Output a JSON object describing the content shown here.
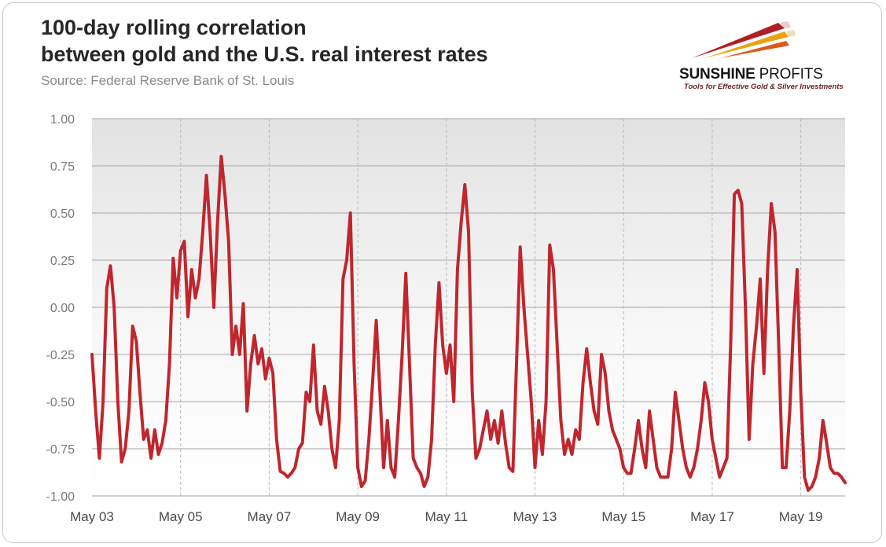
{
  "header": {
    "title_line1": "100-day rolling correlation",
    "title_line2": "between gold and the U.S. real interest rates",
    "source": "Source: Federal Reserve Bank of St. Louis"
  },
  "logo": {
    "brand_bold": "SUNSHINE",
    "brand_rest": " PROFITS",
    "tagline": "Tools for Effective Gold & Silver Investments",
    "colors": [
      "#b01e23",
      "#e8a317",
      "#d95a1a"
    ]
  },
  "chart_data": {
    "type": "line",
    "title": "100-day rolling correlation between gold and the U.S. real interest rates",
    "xlabel": "",
    "ylabel": "",
    "ylim": [
      -1.0,
      1.0
    ],
    "xlim": [
      "2003-05",
      "2020-05"
    ],
    "x_ticks": [
      "May 03",
      "May 05",
      "May 07",
      "May 09",
      "May 11",
      "May 13",
      "May 15",
      "May 17",
      "May 19"
    ],
    "y_ticks": [
      "1.00",
      "0.75",
      "0.50",
      "0.25",
      "0.00",
      "-0.25",
      "-0.50",
      "-0.75",
      "-1.00"
    ],
    "y_tick_values": [
      1.0,
      0.75,
      0.5,
      0.25,
      0.0,
      -0.25,
      -0.5,
      -0.75,
      -1.0
    ],
    "grid": "horizontal solid, vertical dashed at x ticks",
    "series": [
      {
        "color": "#c0262d",
        "points": [
          [
            "2003-05",
            -0.25
          ],
          [
            "2003-06",
            -0.55
          ],
          [
            "2003-07",
            -0.8
          ],
          [
            "2003-08",
            -0.5
          ],
          [
            "2003-09",
            0.1
          ],
          [
            "2003-10",
            0.22
          ],
          [
            "2003-11",
            0.0
          ],
          [
            "2003-12",
            -0.5
          ],
          [
            "2004-01",
            -0.82
          ],
          [
            "2004-02",
            -0.75
          ],
          [
            "2004-03",
            -0.55
          ],
          [
            "2004-04",
            -0.1
          ],
          [
            "2004-05",
            -0.18
          ],
          [
            "2004-06",
            -0.45
          ],
          [
            "2004-07",
            -0.7
          ],
          [
            "2004-08",
            -0.65
          ],
          [
            "2004-09",
            -0.8
          ],
          [
            "2004-10",
            -0.65
          ],
          [
            "2004-11",
            -0.78
          ],
          [
            "2004-12",
            -0.72
          ],
          [
            "2005-01",
            -0.6
          ],
          [
            "2005-02",
            -0.3
          ],
          [
            "2005-03",
            0.26
          ],
          [
            "2005-04",
            0.05
          ],
          [
            "2005-05",
            0.3
          ],
          [
            "2005-06",
            0.35
          ],
          [
            "2005-07",
            -0.05
          ],
          [
            "2005-08",
            0.2
          ],
          [
            "2005-09",
            0.05
          ],
          [
            "2005-10",
            0.15
          ],
          [
            "2005-11",
            0.4
          ],
          [
            "2005-12",
            0.7
          ],
          [
            "2006-01",
            0.4
          ],
          [
            "2006-02",
            0.0
          ],
          [
            "2006-03",
            0.45
          ],
          [
            "2006-04",
            0.8
          ],
          [
            "2006-05",
            0.6
          ],
          [
            "2006-06",
            0.35
          ],
          [
            "2006-07",
            -0.25
          ],
          [
            "2006-08",
            -0.1
          ],
          [
            "2006-09",
            -0.25
          ],
          [
            "2006-10",
            0.02
          ],
          [
            "2006-11",
            -0.55
          ],
          [
            "2006-12",
            -0.3
          ],
          [
            "2007-01",
            -0.15
          ],
          [
            "2007-02",
            -0.3
          ],
          [
            "2007-03",
            -0.22
          ],
          [
            "2007-04",
            -0.38
          ],
          [
            "2007-05",
            -0.27
          ],
          [
            "2007-06",
            -0.35
          ],
          [
            "2007-07",
            -0.7
          ],
          [
            "2007-08",
            -0.87
          ],
          [
            "2007-09",
            -0.88
          ],
          [
            "2007-10",
            -0.9
          ],
          [
            "2007-11",
            -0.88
          ],
          [
            "2007-12",
            -0.85
          ],
          [
            "2008-01",
            -0.75
          ],
          [
            "2008-02",
            -0.72
          ],
          [
            "2008-03",
            -0.45
          ],
          [
            "2008-04",
            -0.5
          ],
          [
            "2008-05",
            -0.2
          ],
          [
            "2008-06",
            -0.55
          ],
          [
            "2008-07",
            -0.62
          ],
          [
            "2008-08",
            -0.42
          ],
          [
            "2008-09",
            -0.55
          ],
          [
            "2008-10",
            -0.75
          ],
          [
            "2008-11",
            -0.85
          ],
          [
            "2008-12",
            -0.6
          ],
          [
            "2009-01",
            0.15
          ],
          [
            "2009-02",
            0.25
          ],
          [
            "2009-03",
            0.5
          ],
          [
            "2009-04",
            -0.3
          ],
          [
            "2009-05",
            -0.85
          ],
          [
            "2009-06",
            -0.95
          ],
          [
            "2009-07",
            -0.92
          ],
          [
            "2009-08",
            -0.7
          ],
          [
            "2009-09",
            -0.4
          ],
          [
            "2009-10",
            -0.07
          ],
          [
            "2009-11",
            -0.45
          ],
          [
            "2009-12",
            -0.85
          ],
          [
            "2010-01",
            -0.6
          ],
          [
            "2010-02",
            -0.85
          ],
          [
            "2010-03",
            -0.9
          ],
          [
            "2010-04",
            -0.6
          ],
          [
            "2010-05",
            -0.25
          ],
          [
            "2010-06",
            0.18
          ],
          [
            "2010-07",
            -0.3
          ],
          [
            "2010-08",
            -0.8
          ],
          [
            "2010-09",
            -0.85
          ],
          [
            "2010-10",
            -0.88
          ],
          [
            "2010-11",
            -0.95
          ],
          [
            "2010-12",
            -0.9
          ],
          [
            "2011-01",
            -0.7
          ],
          [
            "2011-02",
            -0.2
          ],
          [
            "2011-03",
            0.13
          ],
          [
            "2011-04",
            -0.2
          ],
          [
            "2011-05",
            -0.35
          ],
          [
            "2011-06",
            -0.2
          ],
          [
            "2011-07",
            -0.5
          ],
          [
            "2011-08",
            0.2
          ],
          [
            "2011-09",
            0.45
          ],
          [
            "2011-10",
            0.65
          ],
          [
            "2011-11",
            0.4
          ],
          [
            "2011-12",
            -0.45
          ],
          [
            "2012-01",
            -0.8
          ],
          [
            "2012-02",
            -0.75
          ],
          [
            "2012-03",
            -0.65
          ],
          [
            "2012-04",
            -0.55
          ],
          [
            "2012-05",
            -0.7
          ],
          [
            "2012-06",
            -0.6
          ],
          [
            "2012-07",
            -0.72
          ],
          [
            "2012-08",
            -0.55
          ],
          [
            "2012-09",
            -0.72
          ],
          [
            "2012-10",
            -0.85
          ],
          [
            "2012-11",
            -0.87
          ],
          [
            "2012-12",
            -0.3
          ],
          [
            "2013-01",
            0.32
          ],
          [
            "2013-02",
            0.0
          ],
          [
            "2013-03",
            -0.25
          ],
          [
            "2013-04",
            -0.5
          ],
          [
            "2013-05",
            -0.85
          ],
          [
            "2013-06",
            -0.6
          ],
          [
            "2013-07",
            -0.78
          ],
          [
            "2013-08",
            -0.5
          ],
          [
            "2013-09",
            0.33
          ],
          [
            "2013-10",
            0.2
          ],
          [
            "2013-11",
            -0.2
          ],
          [
            "2013-12",
            -0.6
          ],
          [
            "2014-01",
            -0.78
          ],
          [
            "2014-02",
            -0.7
          ],
          [
            "2014-03",
            -0.78
          ],
          [
            "2014-04",
            -0.65
          ],
          [
            "2014-05",
            -0.7
          ],
          [
            "2014-06",
            -0.4
          ],
          [
            "2014-07",
            -0.22
          ],
          [
            "2014-08",
            -0.4
          ],
          [
            "2014-09",
            -0.55
          ],
          [
            "2014-10",
            -0.62
          ],
          [
            "2014-11",
            -0.25
          ],
          [
            "2014-12",
            -0.35
          ],
          [
            "2015-01",
            -0.55
          ],
          [
            "2015-02",
            -0.65
          ],
          [
            "2015-03",
            -0.7
          ],
          [
            "2015-04",
            -0.75
          ],
          [
            "2015-05",
            -0.85
          ],
          [
            "2015-06",
            -0.88
          ],
          [
            "2015-07",
            -0.88
          ],
          [
            "2015-08",
            -0.75
          ],
          [
            "2015-09",
            -0.6
          ],
          [
            "2015-10",
            -0.75
          ],
          [
            "2015-11",
            -0.85
          ],
          [
            "2015-12",
            -0.55
          ],
          [
            "2016-01",
            -0.7
          ],
          [
            "2016-02",
            -0.85
          ],
          [
            "2016-03",
            -0.9
          ],
          [
            "2016-04",
            -0.9
          ],
          [
            "2016-05",
            -0.9
          ],
          [
            "2016-06",
            -0.75
          ],
          [
            "2016-07",
            -0.45
          ],
          [
            "2016-08",
            -0.6
          ],
          [
            "2016-09",
            -0.75
          ],
          [
            "2016-10",
            -0.85
          ],
          [
            "2016-11",
            -0.9
          ],
          [
            "2016-12",
            -0.85
          ],
          [
            "2017-01",
            -0.75
          ],
          [
            "2017-02",
            -0.6
          ],
          [
            "2017-03",
            -0.4
          ],
          [
            "2017-04",
            -0.5
          ],
          [
            "2017-05",
            -0.7
          ],
          [
            "2017-06",
            -0.8
          ],
          [
            "2017-07",
            -0.9
          ],
          [
            "2017-08",
            -0.85
          ],
          [
            "2017-09",
            -0.8
          ],
          [
            "2017-10",
            -0.2
          ],
          [
            "2017-11",
            0.6
          ],
          [
            "2017-12",
            0.62
          ],
          [
            "2018-01",
            0.55
          ],
          [
            "2018-02",
            0.0
          ],
          [
            "2018-03",
            -0.7
          ],
          [
            "2018-04",
            -0.3
          ],
          [
            "2018-05",
            -0.1
          ],
          [
            "2018-06",
            0.15
          ],
          [
            "2018-07",
            -0.35
          ],
          [
            "2018-08",
            0.2
          ],
          [
            "2018-09",
            0.55
          ],
          [
            "2018-10",
            0.4
          ],
          [
            "2018-11",
            -0.2
          ],
          [
            "2018-12",
            -0.85
          ],
          [
            "2019-01",
            -0.85
          ],
          [
            "2019-02",
            -0.55
          ],
          [
            "2019-03",
            -0.1
          ],
          [
            "2019-04",
            0.2
          ],
          [
            "2019-05",
            -0.45
          ],
          [
            "2019-06",
            -0.9
          ],
          [
            "2019-07",
            -0.97
          ],
          [
            "2019-08",
            -0.95
          ],
          [
            "2019-09",
            -0.9
          ],
          [
            "2019-10",
            -0.8
          ],
          [
            "2019-11",
            -0.6
          ],
          [
            "2019-12",
            -0.72
          ],
          [
            "2020-01",
            -0.85
          ],
          [
            "2020-02",
            -0.88
          ],
          [
            "2020-03",
            -0.88
          ],
          [
            "2020-04",
            -0.9
          ],
          [
            "2020-05",
            -0.93
          ]
        ]
      }
    ]
  }
}
